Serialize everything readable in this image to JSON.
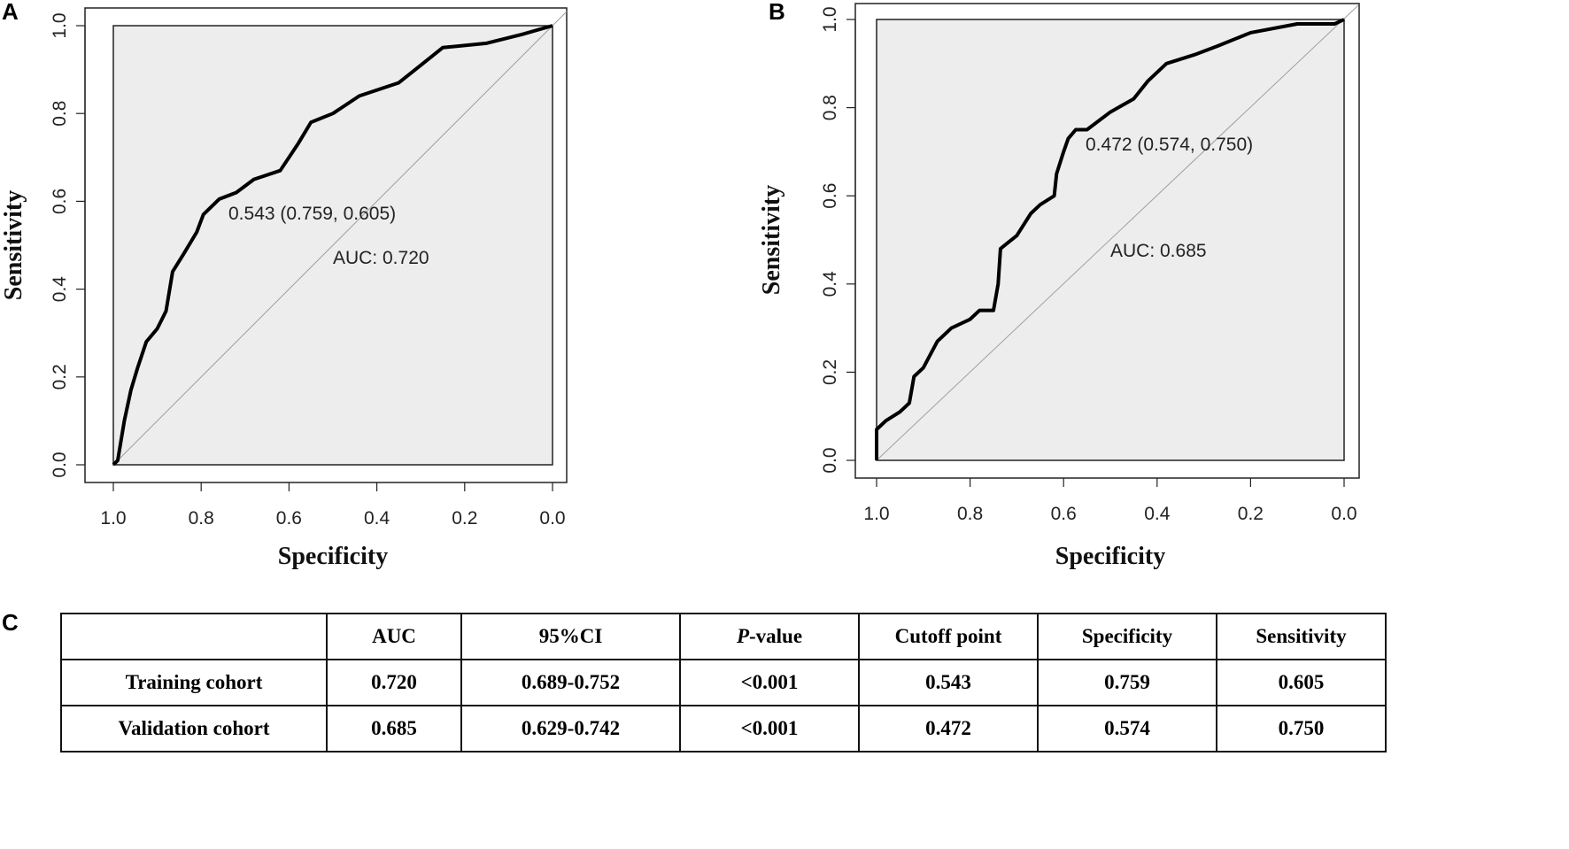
{
  "chart_data": [
    {
      "panel": "A",
      "type": "line",
      "title": "",
      "xlabel": "Specificity",
      "ylabel": "Sensitivity",
      "xlim": [
        1.0,
        0.0
      ],
      "ylim": [
        0.0,
        1.0
      ],
      "xticks": [
        "1.0",
        "0.8",
        "0.6",
        "0.4",
        "0.2",
        "0.0"
      ],
      "yticks": [
        "0.0",
        "0.2",
        "0.4",
        "0.6",
        "0.8",
        "1.0"
      ],
      "series": [
        {
          "name": "ROC",
          "x": [
            1,
            0.99,
            0.975,
            0.96,
            0.945,
            0.925,
            0.9,
            0.88,
            0.865,
            0.84,
            0.81,
            0.795,
            0.759,
            0.72,
            0.68,
            0.62,
            0.58,
            0.55,
            0.5,
            0.44,
            0.35,
            0.3,
            0.25,
            0.15,
            0.07,
            0
          ],
          "y": [
            0,
            0.01,
            0.1,
            0.17,
            0.22,
            0.28,
            0.31,
            0.35,
            0.44,
            0.48,
            0.53,
            0.57,
            0.605,
            0.62,
            0.65,
            0.67,
            0.73,
            0.78,
            0.8,
            0.84,
            0.87,
            0.91,
            0.95,
            0.96,
            0.98,
            1
          ]
        }
      ],
      "annotations": {
        "cutoff": "0.543 (0.759, 0.605)",
        "auc": "AUC: 0.720"
      }
    },
    {
      "panel": "B",
      "type": "line",
      "title": "",
      "xlabel": "Specificity",
      "ylabel": "Sensitivity",
      "xlim": [
        1.0,
        0.0
      ],
      "ylim": [
        0.0,
        1.0
      ],
      "xticks": [
        "1.0",
        "0.8",
        "0.6",
        "0.4",
        "0.2",
        "0.0"
      ],
      "yticks": [
        "0.0",
        "0.2",
        "0.4",
        "0.6",
        "0.8",
        "1.0"
      ],
      "series": [
        {
          "name": "ROC",
          "x": [
            1,
            1,
            0.98,
            0.95,
            0.93,
            0.92,
            0.9,
            0.87,
            0.84,
            0.8,
            0.78,
            0.75,
            0.74,
            0.735,
            0.7,
            0.67,
            0.65,
            0.62,
            0.615,
            0.6,
            0.59,
            0.574,
            0.55,
            0.5,
            0.45,
            0.42,
            0.38,
            0.32,
            0.27,
            0.2,
            0.1,
            0.02,
            0
          ],
          "y": [
            0,
            0.07,
            0.09,
            0.11,
            0.13,
            0.19,
            0.21,
            0.27,
            0.3,
            0.32,
            0.34,
            0.34,
            0.4,
            0.48,
            0.51,
            0.56,
            0.58,
            0.6,
            0.65,
            0.7,
            0.73,
            0.75,
            0.75,
            0.79,
            0.82,
            0.86,
            0.9,
            0.92,
            0.94,
            0.97,
            0.99,
            0.99,
            1
          ]
        }
      ],
      "annotations": {
        "cutoff": "0.472 (0.574, 0.750)",
        "auc": "AUC: 0.685"
      }
    },
    {
      "panel": "C",
      "type": "table",
      "headers": [
        "",
        "AUC",
        "95%CI",
        "P-value",
        "Cutoff point",
        "Specificity",
        "Sensitivity"
      ],
      "rows": [
        [
          "Training cohort",
          "0.720",
          "0.689-0.752",
          "<0.001",
          "0.543",
          "0.759",
          "0.605"
        ],
        [
          "Validation cohort",
          "0.685",
          "0.629-0.742",
          "<0.001",
          "0.472",
          "0.574",
          "0.750"
        ]
      ]
    }
  ],
  "panel_labels": [
    "A",
    "B",
    "C"
  ],
  "pvalue_header": {
    "italic": "P",
    "rest": "-value"
  },
  "colors": {
    "plot_bg": "#ededed",
    "curve": "#000000",
    "diagonal": "#a0a0a0"
  }
}
